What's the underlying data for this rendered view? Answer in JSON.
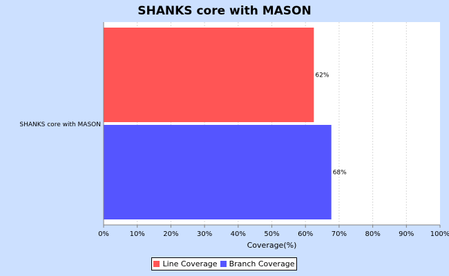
{
  "colors": {
    "background": "#cce0ff",
    "plot_background": "#ffffff",
    "gridline": "#d8d8d8",
    "line_coverage": "#ff5555",
    "branch_coverage": "#5555ff"
  },
  "chart_data": {
    "type": "bar",
    "orientation": "horizontal",
    "title": "SHANKS core with MASON",
    "xlabel": "Coverage(%)",
    "ylabel": "",
    "xlim": [
      0,
      100
    ],
    "x_ticks": [
      "0%",
      "10%",
      "20%",
      "30%",
      "40%",
      "50%",
      "60%",
      "70%",
      "80%",
      "90%",
      "100%"
    ],
    "categories": [
      "SHANKS core with MASON"
    ],
    "series": [
      {
        "name": "Line Coverage",
        "values": [
          62.5
        ],
        "data_label": "62%",
        "color": "#ff5555"
      },
      {
        "name": "Branch Coverage",
        "values": [
          67.7
        ],
        "data_label": "68%",
        "color": "#5555ff"
      }
    ],
    "grid": true,
    "legend_position": "bottom"
  }
}
